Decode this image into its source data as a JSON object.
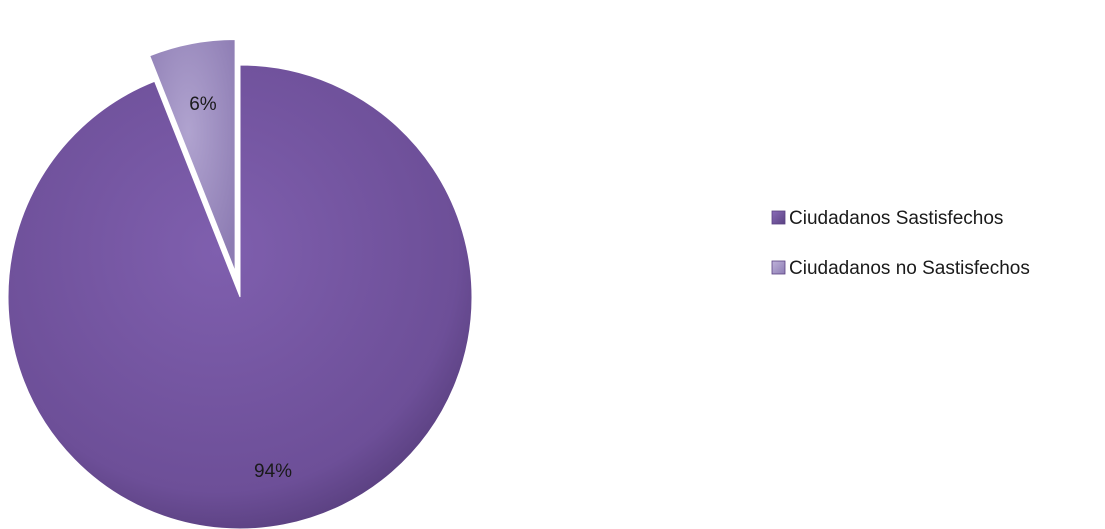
{
  "chart_data": {
    "type": "pie",
    "categories": [
      "Ciudadanos Sastisfechos",
      "Ciudadanos  no Sastisfechos"
    ],
    "values": [
      94,
      6
    ],
    "data_labels": [
      "94%",
      "6%"
    ],
    "colors": [
      "#7a5aa6",
      "#a394c4"
    ],
    "exploded": [
      false,
      true
    ],
    "legend_position": "right",
    "title": ""
  }
}
